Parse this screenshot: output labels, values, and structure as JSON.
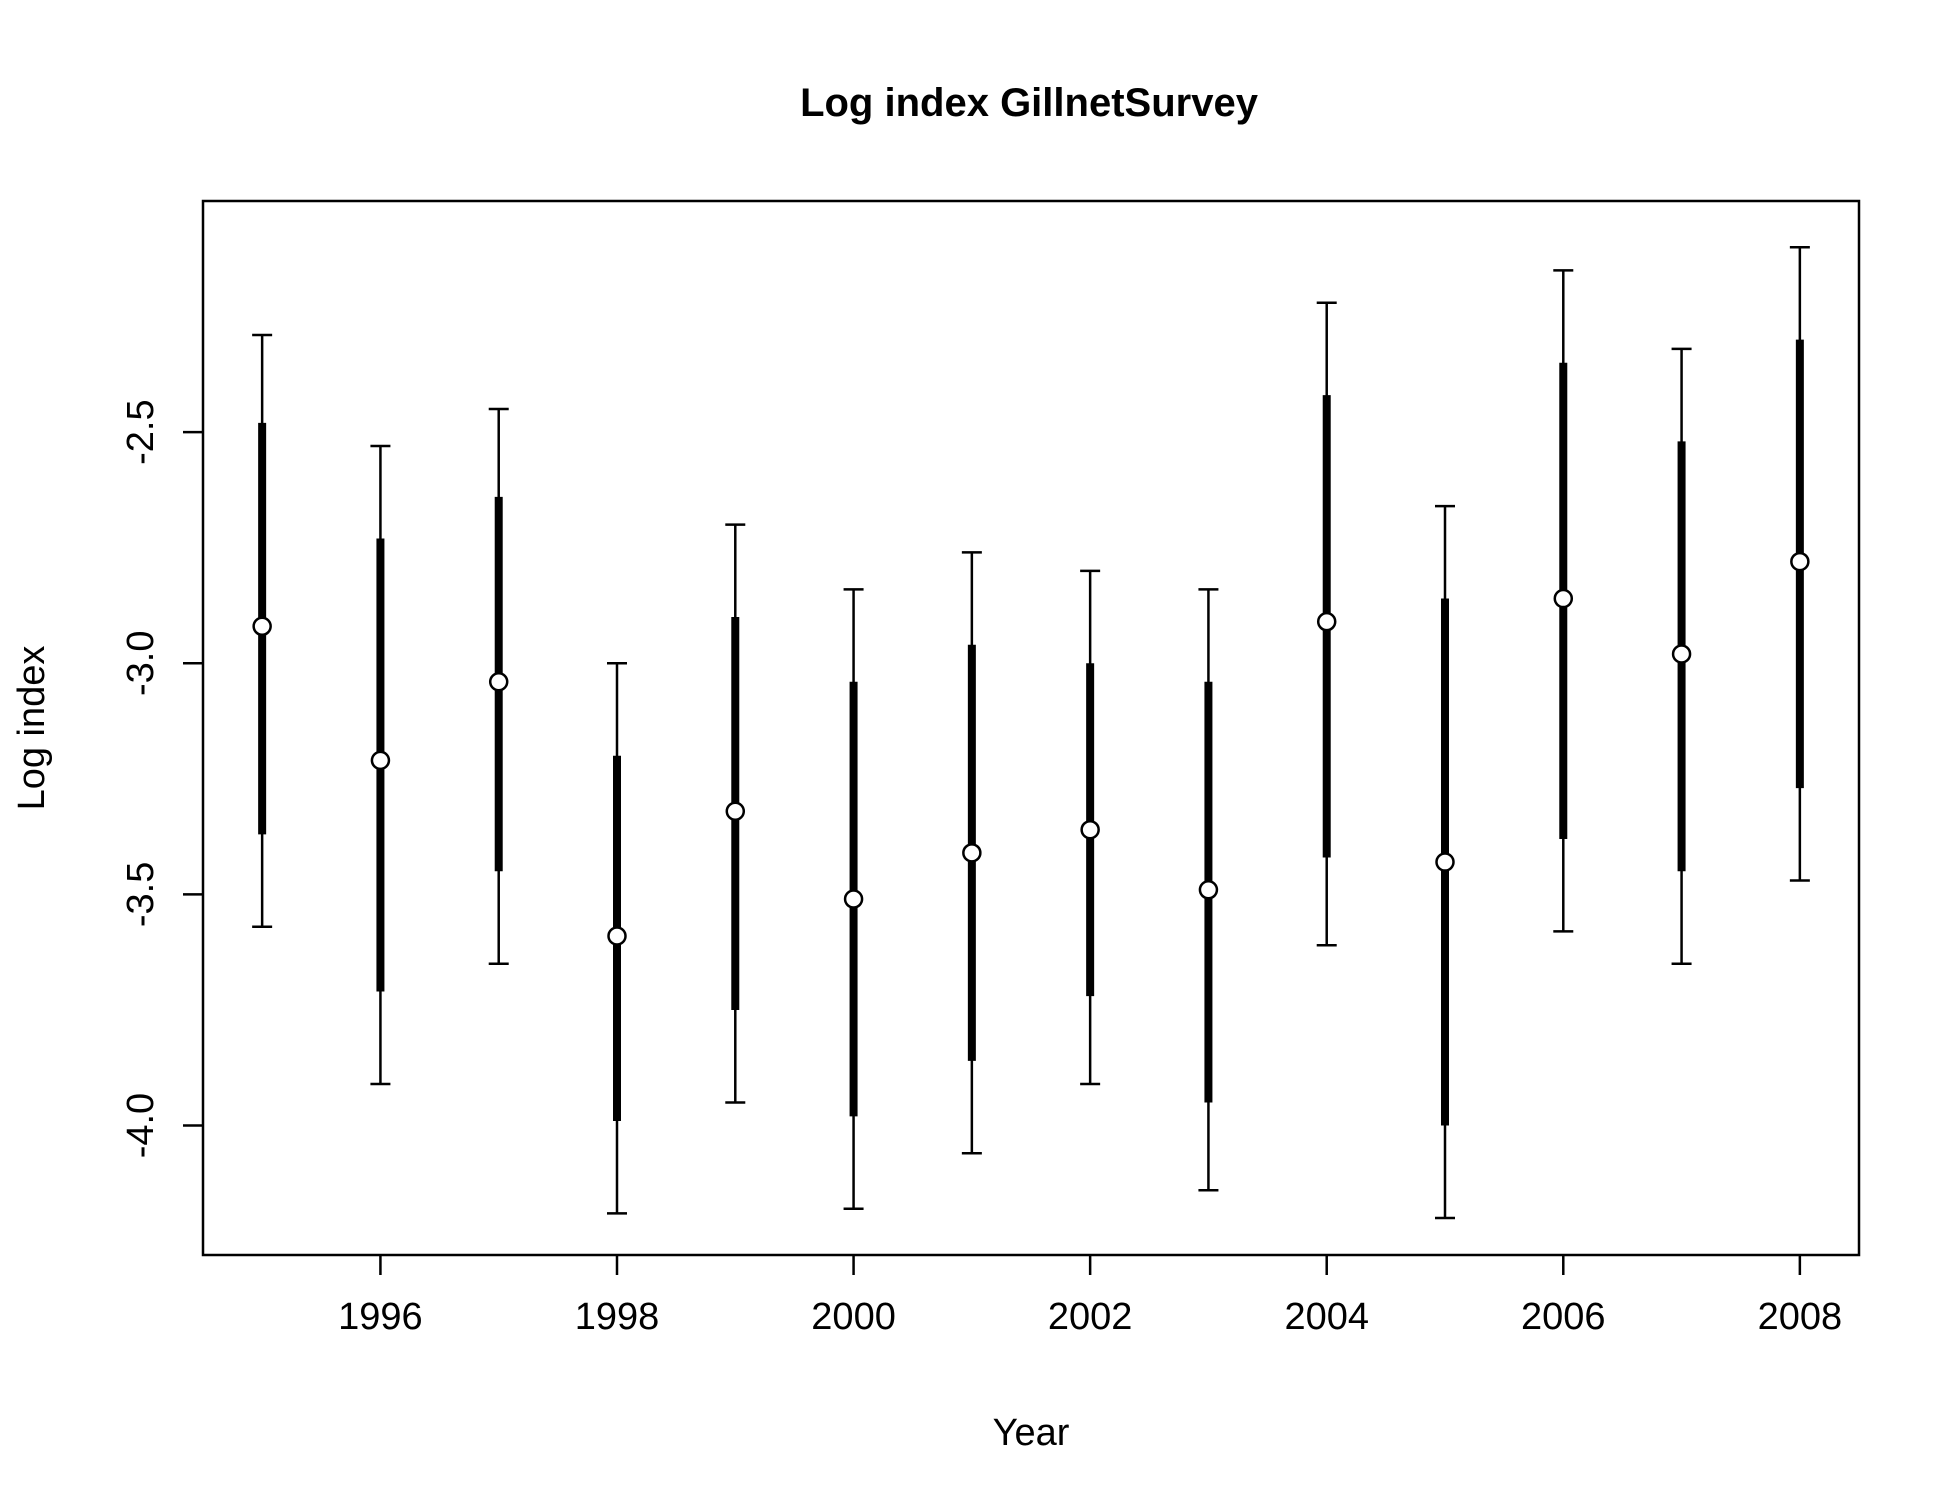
{
  "chart_data": {
    "type": "errorbar",
    "title": "Log index GillnetSurvey",
    "xlabel": "Year",
    "ylabel": "Log index",
    "xlim": [
      1994.5,
      2008.5
    ],
    "ylim": [
      -4.28,
      -2.0
    ],
    "x_ticks": [
      1996,
      1998,
      2000,
      2002,
      2004,
      2006,
      2008
    ],
    "y_ticks": [
      -4.0,
      -3.5,
      -3.0,
      -2.5
    ],
    "y_tick_labels": [
      "-4.0",
      "-3.5",
      "-3.0",
      "-2.5"
    ],
    "grid": false,
    "points": [
      {
        "year": 1995,
        "estimate": -2.92,
        "inner_low": -3.37,
        "inner_high": -2.48,
        "outer_low": -3.57,
        "outer_high": -2.29
      },
      {
        "year": 1996,
        "estimate": -3.21,
        "inner_low": -3.71,
        "inner_high": -2.73,
        "outer_low": -3.91,
        "outer_high": -2.53
      },
      {
        "year": 1997,
        "estimate": -3.04,
        "inner_low": -3.45,
        "inner_high": -2.64,
        "outer_low": -3.65,
        "outer_high": -2.45
      },
      {
        "year": 1998,
        "estimate": -3.59,
        "inner_low": -3.99,
        "inner_high": -3.2,
        "outer_low": -4.19,
        "outer_high": -3.0
      },
      {
        "year": 1999,
        "estimate": -3.32,
        "inner_low": -3.75,
        "inner_high": -2.9,
        "outer_low": -3.95,
        "outer_high": -2.7
      },
      {
        "year": 2000,
        "estimate": -3.51,
        "inner_low": -3.98,
        "inner_high": -3.04,
        "outer_low": -4.18,
        "outer_high": -2.84
      },
      {
        "year": 2001,
        "estimate": -3.41,
        "inner_low": -3.86,
        "inner_high": -2.96,
        "outer_low": -4.06,
        "outer_high": -2.76
      },
      {
        "year": 2002,
        "estimate": -3.36,
        "inner_low": -3.72,
        "inner_high": -3.0,
        "outer_low": -3.91,
        "outer_high": -2.8
      },
      {
        "year": 2003,
        "estimate": -3.49,
        "inner_low": -3.95,
        "inner_high": -3.04,
        "outer_low": -4.14,
        "outer_high": -2.84
      },
      {
        "year": 2004,
        "estimate": -2.91,
        "inner_low": -3.42,
        "inner_high": -2.42,
        "outer_low": -3.61,
        "outer_high": -2.22
      },
      {
        "year": 2005,
        "estimate": -3.43,
        "inner_low": -4.0,
        "inner_high": -2.86,
        "outer_low": -4.2,
        "outer_high": -2.66
      },
      {
        "year": 2006,
        "estimate": -2.86,
        "inner_low": -3.38,
        "inner_high": -2.35,
        "outer_low": -3.58,
        "outer_high": -2.15
      },
      {
        "year": 2007,
        "estimate": -2.98,
        "inner_low": -3.45,
        "inner_high": -2.52,
        "outer_low": -3.65,
        "outer_high": -2.32
      },
      {
        "year": 2008,
        "estimate": -2.78,
        "inner_low": -3.27,
        "inner_high": -2.3,
        "outer_low": -3.47,
        "outer_high": -2.1
      }
    ]
  }
}
